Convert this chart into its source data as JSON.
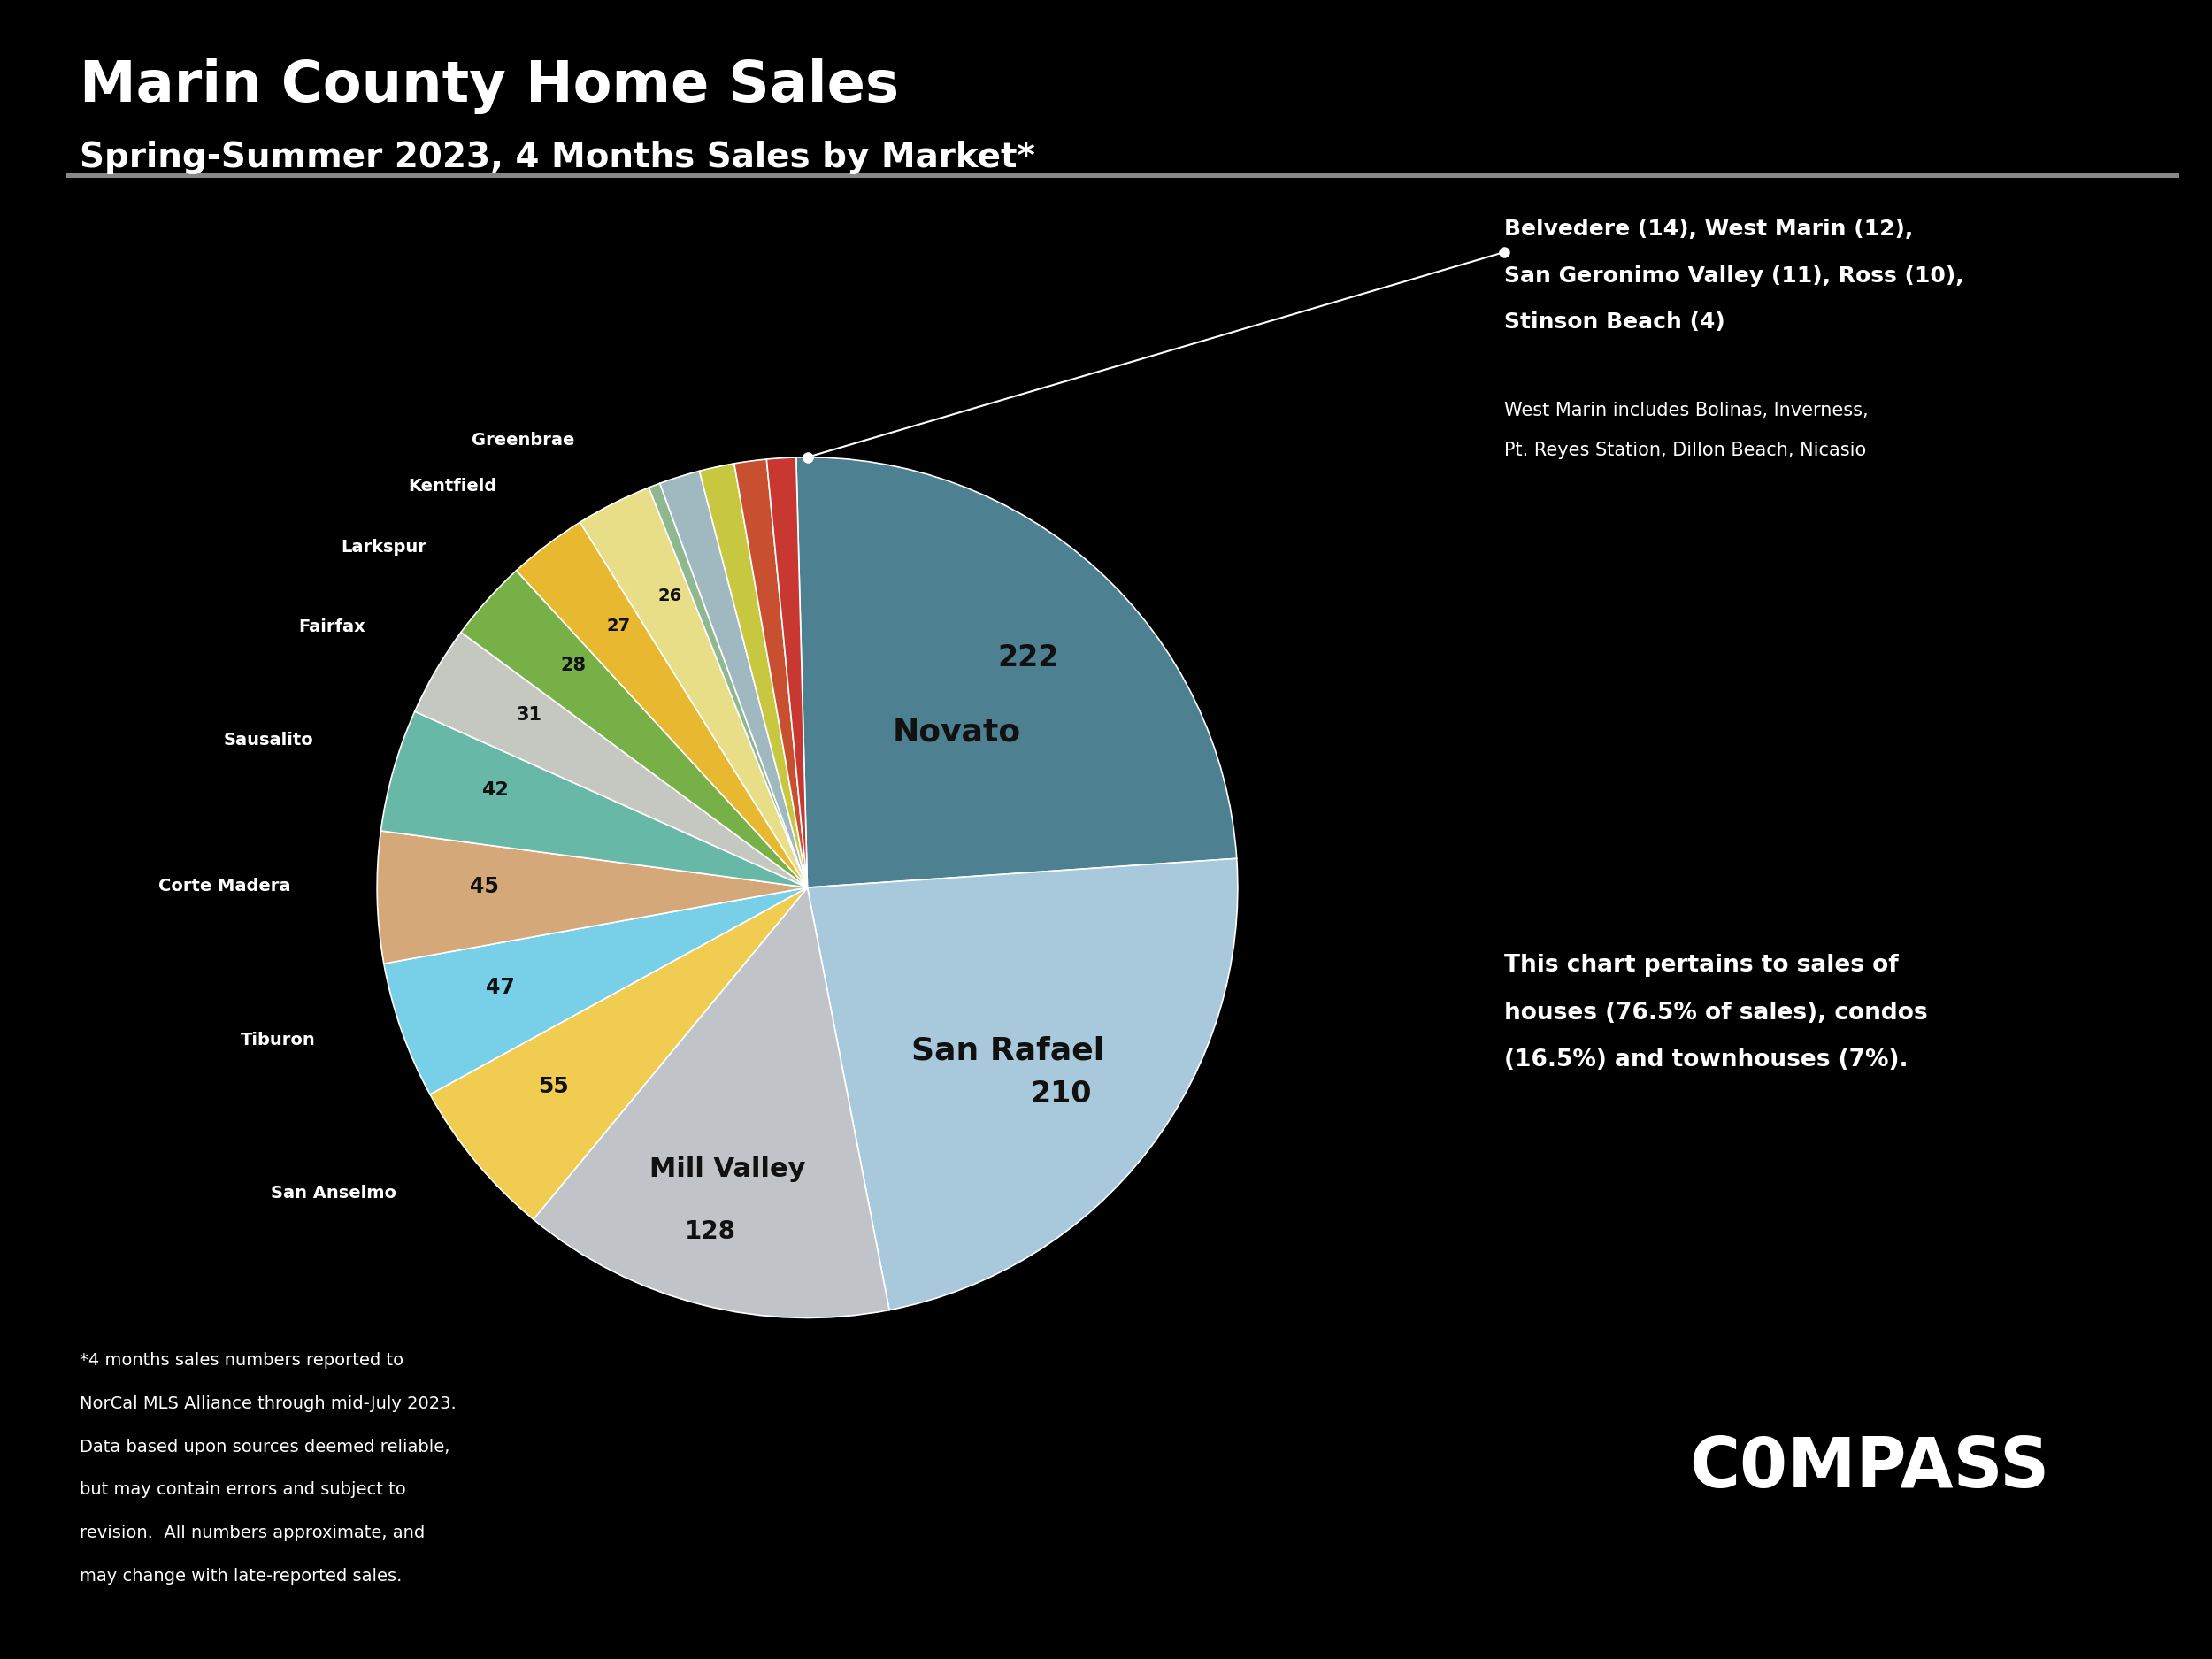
{
  "title": "Marin County Home Sales",
  "subtitle": "Spring-Summer 2023, 4 Months Sales by Market*",
  "background_color": "#000000",
  "text_color": "#ffffff",
  "pie_text_color": "#111111",
  "segments": [
    {
      "label": "Novato",
      "value": 222,
      "color": "#4d8090"
    },
    {
      "label": "San Rafael",
      "value": 210,
      "color": "#a8c8dc"
    },
    {
      "label": "Mill Valley",
      "value": 128,
      "color": "#c0c4c8"
    },
    {
      "label": "San Anselmo",
      "value": 55,
      "color": "#f0cc50"
    },
    {
      "label": "Tiburon",
      "value": 47,
      "color": "#78d0e8"
    },
    {
      "label": "Corte Madera",
      "value": 45,
      "color": "#d4a878"
    },
    {
      "label": "Sausalito",
      "value": 42,
      "color": "#68b8a8"
    },
    {
      "label": "Fairfax",
      "value": 31,
      "color": "#c4c8c0"
    },
    {
      "label": "Larkspur",
      "value": 28,
      "color": "#78b048"
    },
    {
      "label": "Kentfield",
      "value": 27,
      "color": "#e8b830"
    },
    {
      "label": "Greenbrae",
      "value": 26,
      "color": "#e8de88"
    },
    {
      "label": "Stinson Beach",
      "value": 4,
      "color": "#90b890"
    },
    {
      "label": "Belvedere",
      "value": 14,
      "color": "#a0b8c0"
    },
    {
      "label": "West Marin",
      "value": 12,
      "color": "#c8c840"
    },
    {
      "label": "San Geronimo Valley",
      "value": 11,
      "color": "#c85030"
    },
    {
      "label": "Ross",
      "value": 10,
      "color": "#c83830"
    }
  ],
  "annotation_combined_line1": "Belvedere (14), West Marin (12),",
  "annotation_combined_line2": "San Geronimo Valley (11), Ross (10),",
  "annotation_combined_line3": "Stinson Beach (4)",
  "annotation_west_marin_line1": "West Marin includes Bolinas, Inverness,",
  "annotation_west_marin_line2": "Pt. Reyes Station, Dillon Beach, Nicasio",
  "annotation_chart_note_line1": "This chart pertains to sales of",
  "annotation_chart_note_line2": "houses (76.5% of sales), condos",
  "annotation_chart_note_line3": "(16.5%) and townhouses (7%).",
  "footnote_line1": "*4 months sales numbers reported to",
  "footnote_line2": "NorCal MLS Alliance through mid-July 2023.",
  "footnote_line3": "Data based upon sources deemed reliable,",
  "footnote_line4": "but may contain errors and subject to",
  "footnote_line5": "revision.  All numbers approximate, and",
  "footnote_line6": "may change with late-reported sales.",
  "compass_text": "C0MPASS",
  "outside_labels": [
    "Greenbrae",
    "Kentfield",
    "Larkspur",
    "Fairfax",
    "Sausalito",
    "Corte Madera",
    "Tiburon",
    "San Anselmo"
  ],
  "startangle": 91.5
}
